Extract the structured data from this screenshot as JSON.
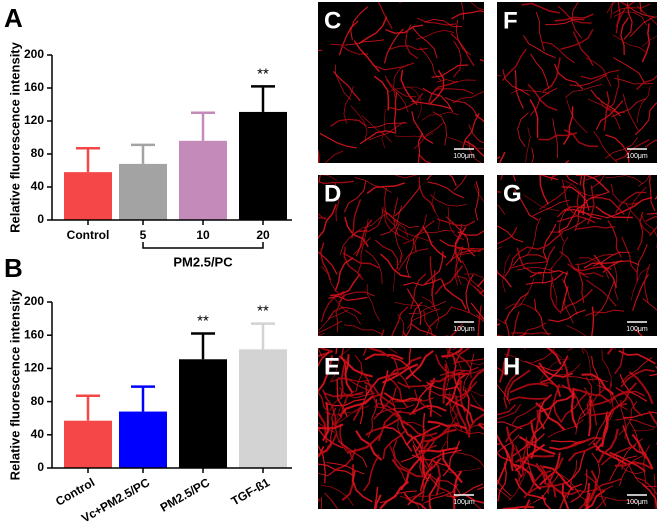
{
  "chart_data": [
    {
      "type": "bar",
      "panel_label": "A",
      "ylabel": "Relative fluorescence intensity",
      "categories": [
        "Control",
        "5",
        "10",
        "20"
      ],
      "values": [
        58,
        68,
        96,
        131
      ],
      "errors": [
        29,
        23,
        34,
        31
      ],
      "colors": [
        "#f54747",
        "#a3a3a3",
        "#c48ab9",
        "#000000"
      ],
      "significance": [
        null,
        null,
        null,
        "**"
      ],
      "group_label": "PM2.5/PC",
      "ylim": [
        0,
        200
      ],
      "yticks": [
        0,
        40,
        80,
        120,
        160,
        200
      ]
    },
    {
      "type": "bar",
      "panel_label": "B",
      "ylabel": "Relative fluorescence intensity",
      "categories": [
        "Control",
        "Vc+PM2.5/PC",
        "PM2.5/PC",
        "TGF-ß1"
      ],
      "values": [
        57,
        68,
        131,
        143
      ],
      "errors": [
        30,
        30,
        31,
        31
      ],
      "colors": [
        "#f54747",
        "#0000ff",
        "#000000",
        "#d3d3d3"
      ],
      "significance": [
        null,
        null,
        "**",
        "**"
      ],
      "ylim": [
        0,
        200
      ],
      "yticks": [
        0,
        40,
        80,
        120,
        160,
        200
      ]
    }
  ],
  "images": [
    {
      "label": "C",
      "scale_bar": "100μm"
    },
    {
      "label": "D",
      "scale_bar": "100μm"
    },
    {
      "label": "E",
      "scale_bar": "100μm"
    },
    {
      "label": "F",
      "scale_bar": "100μm"
    },
    {
      "label": "G",
      "scale_bar": "100μm"
    },
    {
      "label": "H",
      "scale_bar": "100μm"
    }
  ]
}
